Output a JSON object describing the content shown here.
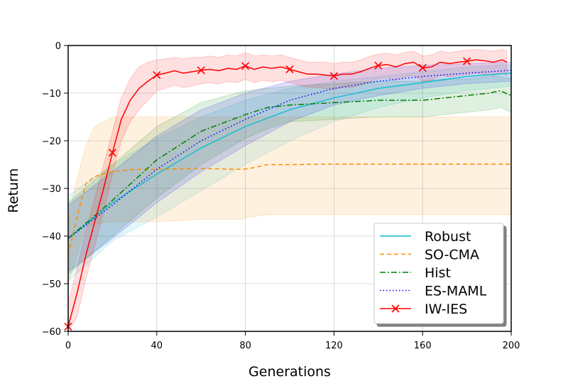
{
  "chart_data": {
    "type": "line",
    "title": "",
    "xlabel": "Generations",
    "ylabel": "Return",
    "xlim": [
      0,
      200
    ],
    "ylim": [
      -60,
      0
    ],
    "x_ticks": [
      0,
      40,
      80,
      120,
      160,
      200
    ],
    "y_ticks": [
      0,
      -10,
      -20,
      -30,
      -40,
      -50,
      -60
    ],
    "grid": true,
    "legend_position": "lower-right",
    "series": [
      {
        "name": "Robust",
        "color": "#17becf",
        "style": "solid",
        "marker": "none",
        "x": [
          0,
          20,
          40,
          60,
          80,
          100,
          120,
          140,
          160,
          180,
          200
        ],
        "values": [
          -40.5,
          -33,
          -27,
          -21.5,
          -17,
          -13.5,
          -11,
          -9,
          -7.8,
          -6.5,
          -5.8
        ],
        "band_upper": [
          -31.5,
          -25,
          -19.5,
          -15,
          -11.5,
          -9,
          -7.5,
          -6.5,
          -5.5,
          -4.5,
          -4
        ],
        "band_lower": [
          -49.5,
          -41,
          -36,
          -30.5,
          -25,
          -20,
          -16,
          -13,
          -11,
          -9.5,
          -8.5
        ]
      },
      {
        "name": "SO-CMA",
        "color": "#ff8c00",
        "style": "dashed",
        "marker": "none",
        "x": [
          0,
          4,
          8,
          12,
          20,
          30,
          40,
          60,
          78,
          82,
          90,
          100,
          120,
          140,
          160,
          180,
          200
        ],
        "values": [
          -44,
          -36,
          -29,
          -27.5,
          -26.5,
          -26,
          -26,
          -25.8,
          -26,
          -25.8,
          -25,
          -25,
          -24.9,
          -24.9,
          -24.9,
          -24.9,
          -24.9
        ],
        "band_upper": [
          -37,
          -28,
          -21,
          -17,
          -15,
          -15,
          -15,
          -15,
          -15,
          -15,
          -15,
          -15,
          -15,
          -15,
          -15,
          -15,
          -15
        ],
        "band_lower": [
          -50,
          -44,
          -38,
          -37.5,
          -37,
          -37,
          -37,
          -36.5,
          -36.5,
          -36,
          -35.5,
          -35.5,
          -35.5,
          -35.5,
          -35.5,
          -35.5,
          -35.5
        ]
      },
      {
        "name": "Hist",
        "color": "#008000",
        "style": "dashdot",
        "marker": "none",
        "x": [
          0,
          20,
          40,
          60,
          80,
          90,
          100,
          120,
          140,
          160,
          170,
          180,
          190,
          195,
          200
        ],
        "values": [
          -40.5,
          -32.5,
          -24,
          -18,
          -14.5,
          -13,
          -12.5,
          -12,
          -11.5,
          -11.5,
          -11,
          -10.5,
          -10,
          -9.5,
          -10.5
        ],
        "band_upper": [
          -33,
          -25,
          -17,
          -12,
          -9.5,
          -9,
          -8.5,
          -8,
          -7.5,
          -7.5,
          -7,
          -7,
          -6.5,
          -6.5,
          -7
        ],
        "band_lower": [
          -48,
          -40,
          -32,
          -25,
          -19.5,
          -17.5,
          -16,
          -15.5,
          -15,
          -15,
          -14.5,
          -14,
          -13.5,
          -13,
          -14
        ]
      },
      {
        "name": "ES-MAML",
        "color": "#0000ff",
        "style": "dotted",
        "marker": "none",
        "x": [
          0,
          20,
          40,
          60,
          80,
          100,
          120,
          140,
          160,
          180,
          200
        ],
        "values": [
          -40.5,
          -33.5,
          -26,
          -20,
          -15.5,
          -11.5,
          -9,
          -7.5,
          -6.5,
          -5.8,
          -5.2
        ],
        "band_upper": [
          -33.5,
          -26.5,
          -19,
          -13.5,
          -10,
          -7.5,
          -6,
          -4.8,
          -4.2,
          -3.8,
          -3.5
        ],
        "band_lower": [
          -47.5,
          -40.5,
          -33,
          -26.5,
          -21,
          -16,
          -12.5,
          -10.5,
          -9,
          -8,
          -7.5
        ]
      },
      {
        "name": "IW-IES",
        "color": "#ff0000",
        "style": "solid",
        "marker": "x",
        "x": [
          0,
          4,
          8,
          12,
          16,
          20,
          24,
          28,
          32,
          36,
          40,
          44,
          48,
          52,
          56,
          60,
          64,
          68,
          72,
          76,
          80,
          84,
          88,
          92,
          96,
          100,
          104,
          108,
          112,
          116,
          120,
          124,
          128,
          132,
          136,
          140,
          144,
          148,
          152,
          156,
          160,
          164,
          168,
          172,
          176,
          180,
          184,
          188,
          192,
          196,
          198
        ],
        "values": [
          -59,
          -52,
          -44,
          -37,
          -30,
          -22.5,
          -15.5,
          -11.5,
          -9,
          -7.5,
          -6.2,
          -5.8,
          -5.3,
          -5.8,
          -5.5,
          -5.2,
          -5,
          -5.3,
          -4.8,
          -5,
          -4.3,
          -5,
          -4.5,
          -4.8,
          -4.5,
          -5,
          -5.5,
          -6,
          -6,
          -6.2,
          -6.4,
          -6,
          -6,
          -5.5,
          -4.8,
          -4.2,
          -4,
          -4.5,
          -3.8,
          -3.5,
          -4.7,
          -4.5,
          -3.5,
          -3.8,
          -3.5,
          -3.3,
          -3,
          -3.2,
          -3.5,
          -3,
          -3.5
        ],
        "band_upper": [
          -54,
          -47,
          -39,
          -32,
          -25,
          -18,
          -11,
          -7,
          -4.5,
          -3.5,
          -3,
          -2.8,
          -2.5,
          -2.8,
          -2.5,
          -2.5,
          -2.2,
          -2.5,
          -2,
          -2.2,
          -1.5,
          -2.2,
          -2,
          -2.2,
          -2,
          -2.5,
          -3,
          -3.5,
          -3.5,
          -3.5,
          -3.8,
          -3.5,
          -3.5,
          -3,
          -2.3,
          -1.8,
          -1.6,
          -2,
          -1.5,
          -1.2,
          -2.2,
          -2,
          -1.2,
          -1.5,
          -1.2,
          -1,
          -0.8,
          -1,
          -1.2,
          -0.8,
          -1.2
        ],
        "band_lower": [
          -60,
          -57,
          -49,
          -42,
          -35,
          -27,
          -20,
          -16,
          -13.5,
          -11.5,
          -9.5,
          -9,
          -8.3,
          -8.8,
          -8.5,
          -8,
          -7.8,
          -8.1,
          -7.6,
          -7.8,
          -7.1,
          -7.8,
          -7.3,
          -7.6,
          -7.3,
          -7.8,
          -8.3,
          -8.8,
          -8.8,
          -9,
          -9.2,
          -8.8,
          -8.8,
          -8.3,
          -7.6,
          -7,
          -6.8,
          -7.3,
          -6.6,
          -6.3,
          -7.5,
          -7.3,
          -6.3,
          -6.6,
          -6.3,
          -6.1,
          -5.8,
          -6,
          -6.3,
          -5.8,
          -6.3
        ],
        "marker_x": [
          0,
          20,
          40,
          60,
          80,
          100,
          120,
          140,
          160,
          180
        ],
        "marker_values": [
          -59,
          -22.5,
          -6.2,
          -5.2,
          -4.3,
          -5,
          -6.4,
          -4.2,
          -4.7,
          -3.3
        ]
      }
    ]
  }
}
